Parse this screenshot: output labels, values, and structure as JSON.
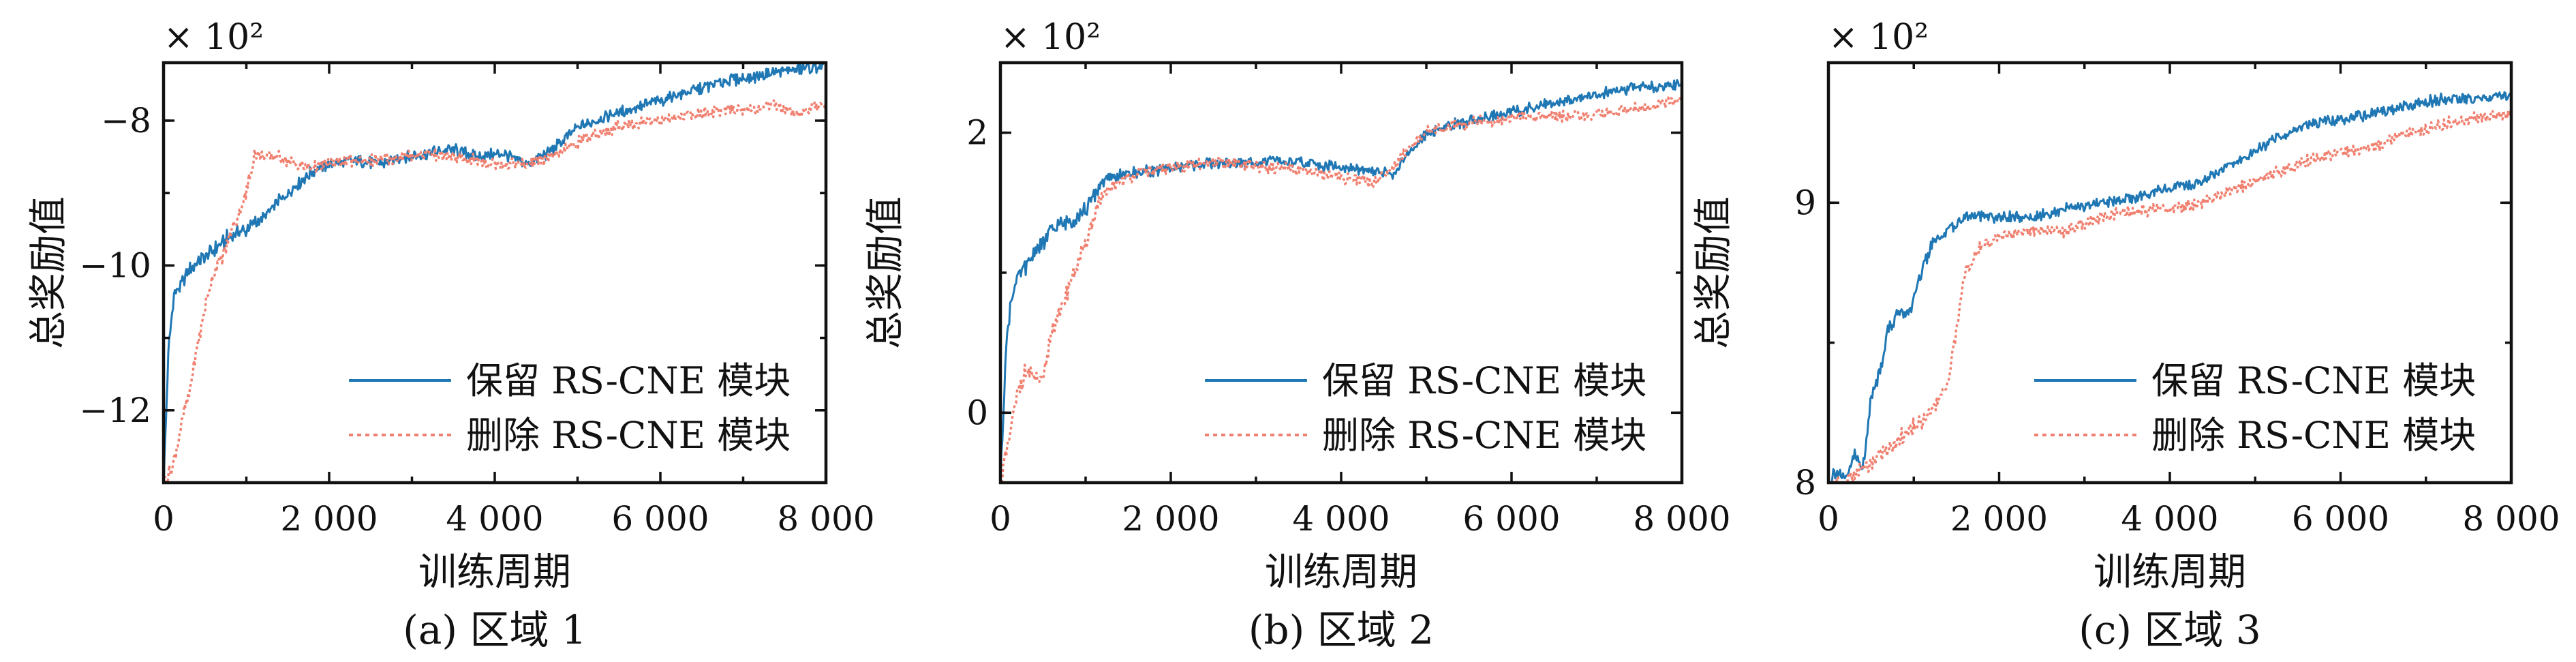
{
  "chart_data": [
    {
      "type": "line",
      "caption": "(a) 区域 1",
      "xlabel": "训练周期",
      "ylabel": "总奖励值",
      "multiplier": "× 10²",
      "xlim": [
        0,
        8000
      ],
      "ylim": [
        -13,
        -7.2
      ],
      "xticks": [
        0,
        2000,
        4000,
        6000,
        8000
      ],
      "xtick_labels": [
        "0",
        "2 000",
        "4 000",
        "6 000",
        "8 000"
      ],
      "yticks": [
        -12,
        -10,
        -8
      ],
      "ytick_labels": [
        "−12",
        "−10",
        "−8"
      ],
      "grid": false,
      "legend_position": "lower-right",
      "series": [
        {
          "name": "保留 RS-CNE 模块",
          "color": "#1f77b4",
          "style": "solid",
          "x": [
            0,
            60,
            120,
            200,
            300,
            450,
            600,
            800,
            1000,
            1200,
            1400,
            1600,
            1800,
            2000,
            2300,
            2600,
            2900,
            3200,
            3500,
            3800,
            4100,
            4400,
            4700,
            5000,
            5300,
            5600,
            5900,
            6200,
            6500,
            6800,
            7100,
            7400,
            7700,
            8000
          ],
          "y": [
            -13.0,
            -11.2,
            -10.4,
            -10.3,
            -10.1,
            -9.9,
            -9.8,
            -9.6,
            -9.5,
            -9.35,
            -9.1,
            -8.9,
            -8.7,
            -8.6,
            -8.55,
            -8.6,
            -8.5,
            -8.45,
            -8.4,
            -8.5,
            -8.45,
            -8.6,
            -8.4,
            -8.1,
            -7.95,
            -7.85,
            -7.75,
            -7.65,
            -7.55,
            -7.45,
            -7.4,
            -7.33,
            -7.28,
            -7.25
          ]
        },
        {
          "name": "删除 RS-CNE 模块",
          "color": "#f08070",
          "style": "dotted",
          "x": [
            0,
            100,
            200,
            300,
            400,
            500,
            600,
            700,
            800,
            900,
            1000,
            1100,
            1200,
            1400,
            1600,
            1800,
            2000,
            2300,
            2600,
            2900,
            3200,
            3500,
            3800,
            4100,
            4400,
            4700,
            5000,
            5300,
            5600,
            5900,
            6200,
            6500,
            6800,
            7100,
            7400,
            7700,
            8000
          ],
          "y": [
            -13.0,
            -12.8,
            -12.3,
            -11.8,
            -11.2,
            -10.6,
            -10.1,
            -9.9,
            -9.6,
            -9.3,
            -9.0,
            -8.45,
            -8.5,
            -8.5,
            -8.6,
            -8.65,
            -8.6,
            -8.55,
            -8.55,
            -8.5,
            -8.45,
            -8.5,
            -8.55,
            -8.6,
            -8.6,
            -8.5,
            -8.3,
            -8.15,
            -8.05,
            -8.0,
            -7.95,
            -7.9,
            -7.85,
            -7.85,
            -7.8,
            -7.9,
            -7.75
          ]
        }
      ]
    },
    {
      "type": "line",
      "caption": "(b) 区域 2",
      "xlabel": "训练周期",
      "ylabel": "总奖励值",
      "multiplier": "× 10²",
      "xlim": [
        0,
        8000
      ],
      "ylim": [
        -0.5,
        2.5
      ],
      "xticks": [
        0,
        2000,
        4000,
        6000,
        8000
      ],
      "xtick_labels": [
        "0",
        "2 000",
        "4 000",
        "6 000",
        "8 000"
      ],
      "yticks": [
        0,
        2
      ],
      "ytick_labels": [
        "0",
        "2"
      ],
      "grid": false,
      "legend_position": "lower-right",
      "series": [
        {
          "name": "保留 RS-CNE 模块",
          "color": "#1f77b4",
          "style": "solid",
          "x": [
            0,
            60,
            120,
            200,
            300,
            400,
            500,
            600,
            700,
            800,
            900,
            1000,
            1100,
            1200,
            1400,
            1700,
            2000,
            2400,
            2800,
            3200,
            3600,
            4000,
            4400,
            4600,
            4800,
            5000,
            5300,
            5600,
            6000,
            6400,
            6800,
            7200,
            7600,
            8000
          ],
          "y": [
            -0.5,
            0.4,
            0.8,
            0.95,
            1.05,
            1.15,
            1.2,
            1.3,
            1.35,
            1.35,
            1.4,
            1.45,
            1.55,
            1.65,
            1.7,
            1.72,
            1.75,
            1.78,
            1.78,
            1.8,
            1.78,
            1.75,
            1.72,
            1.7,
            1.85,
            2.0,
            2.05,
            2.1,
            2.15,
            2.2,
            2.25,
            2.3,
            2.33,
            2.35
          ]
        },
        {
          "name": "删除 RS-CNE 模块",
          "color": "#f08070",
          "style": "dotted",
          "x": [
            0,
            100,
            200,
            300,
            400,
            500,
            600,
            700,
            800,
            900,
            1000,
            1100,
            1200,
            1400,
            1700,
            2000,
            2400,
            2800,
            3200,
            3600,
            4000,
            4400,
            4600,
            4800,
            5000,
            5300,
            5600,
            6000,
            6400,
            6800,
            7200,
            7600,
            8000
          ],
          "y": [
            -0.5,
            -0.2,
            0.15,
            0.3,
            0.25,
            0.2,
            0.6,
            0.7,
            0.9,
            1.05,
            1.2,
            1.4,
            1.55,
            1.65,
            1.72,
            1.75,
            1.78,
            1.78,
            1.75,
            1.72,
            1.68,
            1.65,
            1.75,
            1.9,
            2.0,
            2.05,
            2.08,
            2.1,
            2.12,
            2.12,
            2.15,
            2.18,
            2.25
          ]
        }
      ]
    },
    {
      "type": "line",
      "caption": "(c) 区域 3",
      "xlabel": "训练周期",
      "ylabel": "总奖励值",
      "multiplier": "× 10²",
      "xlim": [
        0,
        8000
      ],
      "ylim": [
        8,
        9.5
      ],
      "xticks": [
        0,
        2000,
        4000,
        6000,
        8000
      ],
      "xtick_labels": [
        "0",
        "2 000",
        "4 000",
        "6 000",
        "8 000"
      ],
      "yticks": [
        8,
        9
      ],
      "ytick_labels": [
        "8",
        "9"
      ],
      "grid": false,
      "legend_position": "lower-right",
      "series": [
        {
          "name": "保留 RS-CNE 模块",
          "color": "#1f77b4",
          "style": "solid",
          "x": [
            0,
            100,
            200,
            300,
            400,
            500,
            600,
            700,
            800,
            900,
            1000,
            1100,
            1200,
            1400,
            1600,
            2000,
            2400,
            2800,
            3200,
            3600,
            4000,
            4400,
            4800,
            5200,
            5600,
            6000,
            6400,
            6800,
            7200,
            7600,
            8000
          ],
          "y": [
            8.0,
            8.05,
            8.0,
            8.1,
            8.05,
            8.3,
            8.4,
            8.55,
            8.6,
            8.6,
            8.65,
            8.75,
            8.85,
            8.9,
            8.95,
            8.95,
            8.95,
            8.98,
            9.0,
            9.02,
            9.05,
            9.08,
            9.15,
            9.22,
            9.28,
            9.3,
            9.32,
            9.35,
            9.37,
            9.37,
            9.38
          ]
        },
        {
          "name": "删除 RS-CNE 模块",
          "color": "#f08070",
          "style": "dotted",
          "x": [
            0,
            200,
            400,
            600,
            800,
            1000,
            1200,
            1400,
            1500,
            1600,
            1700,
            1800,
            2000,
            2400,
            2800,
            3200,
            3600,
            4000,
            4400,
            4800,
            5200,
            5600,
            6000,
            6400,
            6800,
            7200,
            7600,
            8000
          ],
          "y": [
            8.0,
            8.0,
            8.05,
            8.1,
            8.15,
            8.2,
            8.25,
            8.35,
            8.55,
            8.75,
            8.8,
            8.85,
            8.88,
            8.9,
            8.9,
            8.95,
            8.97,
            8.98,
            9.0,
            9.05,
            9.1,
            9.15,
            9.18,
            9.2,
            9.25,
            9.28,
            9.3,
            9.32
          ]
        }
      ]
    }
  ]
}
